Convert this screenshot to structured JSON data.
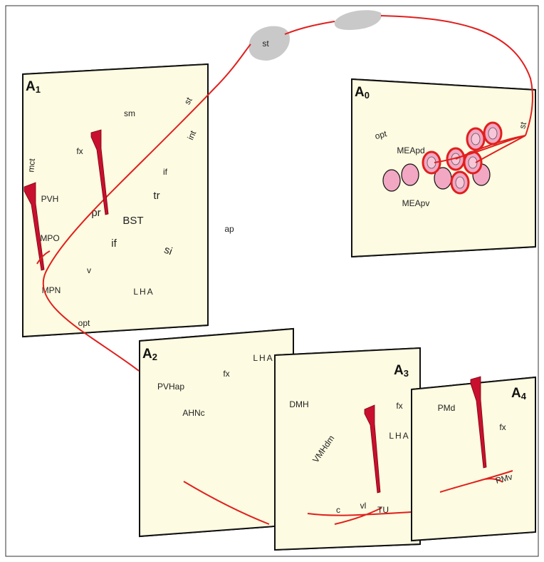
{
  "free_labels": [
    "st",
    "ap"
  ],
  "panels": [
    {
      "letter": "A",
      "index": "1",
      "labels": [
        "sm",
        "fx",
        "mct",
        "PVH",
        "pr",
        "BST",
        "tr",
        "if",
        "if",
        "si",
        "MPO",
        "v",
        "MPN",
        "LHA",
        "opt",
        "st",
        "int"
      ]
    },
    {
      "letter": "A",
      "index": "0",
      "labels": [
        "opt",
        "MEApd",
        "MEApv",
        "st"
      ]
    },
    {
      "letter": "A",
      "index": "2",
      "labels": [
        "PVHap",
        "fx",
        "LHA",
        "AHNc"
      ]
    },
    {
      "letter": "A",
      "index": "3",
      "labels": [
        "DMH",
        "fx",
        "LHA",
        "VMHdm",
        "c",
        "vl",
        "TU"
      ]
    },
    {
      "letter": "A",
      "index": "4",
      "labels": [
        "PMd",
        "fx",
        "PMv"
      ]
    }
  ]
}
